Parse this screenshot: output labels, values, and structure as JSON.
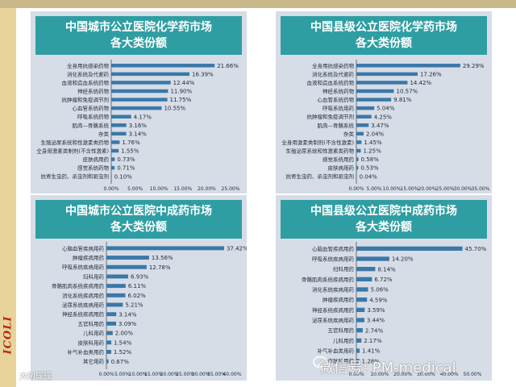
{
  "slide": {
    "side_logo": "ICOLI",
    "watermark": "微信号: PM-medical",
    "author": "大树瑶瑶"
  },
  "colors": {
    "bar": "#3a78a8",
    "header": "#2f9ea3",
    "panel": "#d6dde7"
  },
  "chart_data": [
    {
      "type": "bar",
      "orientation": "horizontal",
      "title_lines": [
        "中国城市公立医院化学药市场",
        "各大类份额"
      ],
      "xlim": [
        0,
        25
      ],
      "ticks": [
        "0.00%",
        "5.00%",
        "10.00%",
        "15.00%",
        "20.00%",
        "25.00%"
      ],
      "tick_values": [
        0,
        5,
        10,
        15,
        20,
        25
      ],
      "categories": [
        "全身用抗感染药物",
        "消化系统及代谢药",
        "血液和造血系统药物",
        "神经系统药物",
        "抗肿瘤和免疫调节剂",
        "心血管系统药物",
        "呼吸系统药物",
        "肌肉—骨骼系统",
        "杂类",
        "生殖泌尿系统和性激素类药物",
        "全身用激素类制剂(不含性激素)",
        "皮肤病用药",
        "感觉系统药物",
        "抗寄生虫药、杀虫剂和驱虫剂"
      ],
      "values": [
        21.66,
        16.39,
        12.44,
        11.9,
        11.75,
        10.55,
        4.17,
        3.16,
        3.14,
        1.76,
        1.55,
        0.73,
        0.71,
        0.1
      ],
      "labels": [
        "21.66%",
        "16.39%",
        "12.44%",
        "11.90%",
        "11.75%",
        "10.55%",
        "4.17%",
        "3.16%",
        "3.14%",
        "1.76%",
        "1.55%",
        "0.73%",
        "0.71%",
        "0.10%"
      ]
    },
    {
      "type": "bar",
      "orientation": "horizontal",
      "title_lines": [
        "中国县级公立医院化学药市场",
        "各大类份额"
      ],
      "xlim": [
        0,
        35
      ],
      "ticks": [
        "0.00%",
        "5.00%",
        "10.00%",
        "15.00%",
        "20.00%",
        "25.00%",
        "30.00%",
        "35.00%"
      ],
      "tick_values": [
        0,
        5,
        10,
        15,
        20,
        25,
        30,
        35
      ],
      "categories": [
        "全身用抗感染药物",
        "消化系统及代谢药",
        "血液和造血系统药物",
        "神经系统药物",
        "心血管系统药物",
        "呼吸系统用药",
        "抗肿瘤和免疫调节剂",
        "肌肉—骨骼系统",
        "杂类",
        "全身用激素类制剂(不含性激素)",
        "生殖泌尿系统和性激素类药物",
        "感觉系统用药",
        "皮肤病用药",
        "抗寄生虫药、杀虫剂和驱虫剂"
      ],
      "values": [
        29.29,
        17.26,
        14.42,
        10.57,
        9.81,
        5.04,
        4.25,
        3.47,
        2.04,
        1.45,
        1.25,
        0.58,
        0.53,
        0.04
      ],
      "labels": [
        "29.29%",
        "17.26%",
        "14.42%",
        "10.57%",
        "9.81%",
        "5.04%",
        "4.25%",
        "3.47%",
        "2.04%",
        "1.45%",
        "1.25%",
        "0.58%",
        "0.53%",
        "0.04%"
      ]
    },
    {
      "type": "bar",
      "orientation": "horizontal",
      "title_lines": [
        "中国城市公立医院中成药市场",
        "各大类份额"
      ],
      "xlim": [
        0,
        40
      ],
      "ticks": [
        "0.00%",
        "5.00%",
        "10.00%",
        "15.00%",
        "20.00%",
        "25.00%",
        "30.00%",
        "35.00%",
        "40.00%"
      ],
      "tick_values": [
        0,
        5,
        10,
        15,
        20,
        25,
        30,
        35,
        40
      ],
      "categories": [
        "心脑血管疾病用药",
        "肿瘤疾病用药",
        "呼吸系统疾病用药",
        "妇科用药",
        "骨骼肌肉系统疾病用药",
        "消化系统疾病用药",
        "泌尿系统疾病用药",
        "神经系统疾病用药",
        "五官科用药",
        "儿科用药",
        "皮肤科用药",
        "补气补血类用药",
        "其它用药"
      ],
      "values": [
        37.42,
        13.56,
        12.78,
        6.93,
        6.11,
        6.02,
        5.21,
        3.14,
        3.09,
        2.0,
        1.54,
        1.52,
        0.67
      ],
      "labels": [
        "37.42%",
        "13.56%",
        "12.78%",
        "6.93%",
        "6.11%",
        "6.02%",
        "5.21%",
        "3.14%",
        "3.09%",
        "2.00%",
        "1.54%",
        "1.52%",
        "0.67%"
      ]
    },
    {
      "type": "bar",
      "orientation": "horizontal",
      "title_lines": [
        "中国县级公立医院中成药市场",
        "各大类份额"
      ],
      "xlim": [
        0,
        50
      ],
      "ticks": [
        "0.00%",
        "10.00%",
        "20.00%",
        "30.00%",
        "40.00%",
        "50.00%"
      ],
      "tick_values": [
        0,
        10,
        20,
        30,
        40,
        50
      ],
      "categories": [
        "心脑血管疾病用药",
        "呼吸系统疾病用药",
        "妇科用药",
        "骨骼肌肉系统疾病用药",
        "消化系统疾病用药",
        "肿瘤疾病用药",
        "神经系统疾病用药",
        "泌尿系统疾病用药",
        "五官科用药",
        "儿科用药",
        "补气补血类用药",
        "皮肤科用药"
      ],
      "values": [
        45.7,
        14.2,
        8.14,
        6.72,
        5.06,
        4.59,
        3.59,
        3.44,
        2.74,
        2.17,
        1.41,
        1.28
      ],
      "labels": [
        "45.70%",
        "14.20%",
        "8.14%",
        "6.72%",
        "5.06%",
        "4.59%",
        "3.59%",
        "3.44%",
        "2.74%",
        "2.17%",
        "1.41%",
        "1.28%"
      ]
    }
  ]
}
